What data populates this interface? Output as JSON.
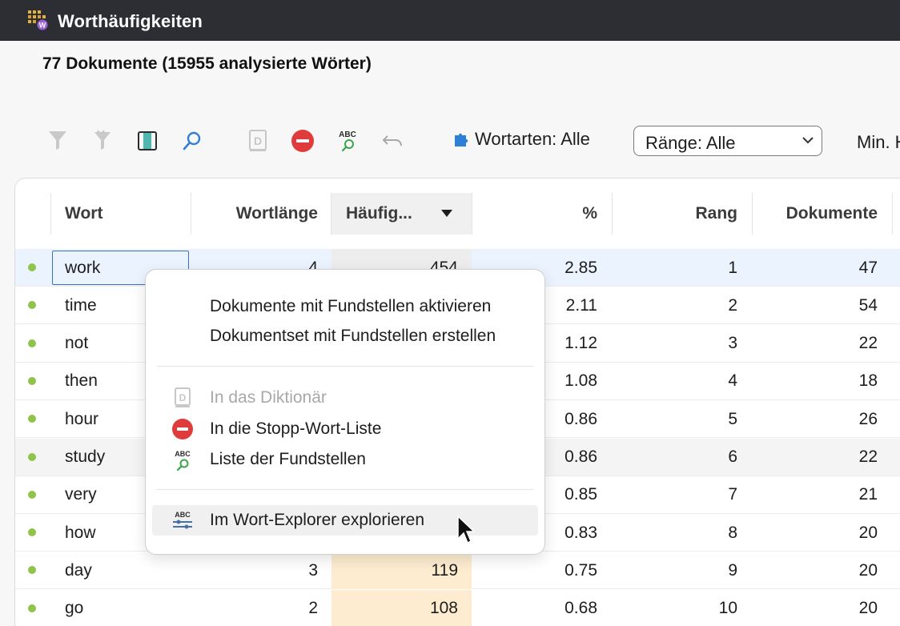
{
  "window": {
    "title": "Worthäufigkeiten",
    "icon": "word-frequency-app-icon"
  },
  "summary": "77 Dokumente (15955 analysierte Wörter)",
  "toolbar": {
    "icons": [
      "filter-icon",
      "filter-reset-icon",
      "columns-icon",
      "search-icon",
      "dictionary-icon",
      "stop-icon",
      "abc-search-icon",
      "undo-icon"
    ],
    "wortarten_label": "Wortarten: Alle",
    "raenge_value": "Ränge: Alle",
    "min_label": "Min. H"
  },
  "table": {
    "headers": {
      "wort": "Wort",
      "wortlaenge": "Wortlänge",
      "haeufigkeit": "Häufig...",
      "prozent": "%",
      "rang": "Rang",
      "dokumente": "Dokumente"
    },
    "rows": [
      {
        "wort": "work",
        "wortlaenge": "4",
        "haeufigkeit": "454",
        "prozent": "2.85",
        "rang": "1",
        "dokumente": "47"
      },
      {
        "wort": "time",
        "wortlaenge": "",
        "haeufigkeit": "",
        "prozent": "2.11",
        "rang": "2",
        "dokumente": "54"
      },
      {
        "wort": "not",
        "wortlaenge": "",
        "haeufigkeit": "",
        "prozent": "1.12",
        "rang": "3",
        "dokumente": "22"
      },
      {
        "wort": "then",
        "wortlaenge": "",
        "haeufigkeit": "",
        "prozent": "1.08",
        "rang": "4",
        "dokumente": "18"
      },
      {
        "wort": "hour",
        "wortlaenge": "",
        "haeufigkeit": "",
        "prozent": "0.86",
        "rang": "5",
        "dokumente": "26"
      },
      {
        "wort": "study",
        "wortlaenge": "",
        "haeufigkeit": "",
        "prozent": "0.86",
        "rang": "6",
        "dokumente": "22"
      },
      {
        "wort": "very",
        "wortlaenge": "",
        "haeufigkeit": "",
        "prozent": "0.85",
        "rang": "7",
        "dokumente": "21"
      },
      {
        "wort": "how",
        "wortlaenge": "",
        "haeufigkeit": "",
        "prozent": "0.83",
        "rang": "8",
        "dokumente": "20"
      },
      {
        "wort": "day",
        "wortlaenge": "3",
        "haeufigkeit": "119",
        "prozent": "0.75",
        "rang": "9",
        "dokumente": "20"
      },
      {
        "wort": "go",
        "wortlaenge": "2",
        "haeufigkeit": "108",
        "prozent": "0.68",
        "rang": "10",
        "dokumente": "20"
      }
    ]
  },
  "context_menu": {
    "items": [
      {
        "label": "Dokumente mit Fundstellen aktivieren",
        "icon": ""
      },
      {
        "label": "Dokumentset mit Fundstellen erstellen",
        "icon": ""
      },
      {
        "label": "In das Diktionär",
        "icon": "dictionary-icon",
        "disabled": true
      },
      {
        "label": "In die Stopp-Wort-Liste",
        "icon": "stop-icon"
      },
      {
        "label": "Liste der Fundstellen",
        "icon": "abc-search-icon"
      },
      {
        "label": "Im Wort-Explorer explorieren",
        "icon": "abc-explorer-icon"
      }
    ]
  },
  "colors": {
    "titlebar": "#2c2e33",
    "accent_blue": "#2f7fd6",
    "stop_red": "#e03b3b",
    "dot_green": "#8fc34a",
    "freq_peach": "#fdecd0",
    "selected_row": "#eaf3fe"
  }
}
